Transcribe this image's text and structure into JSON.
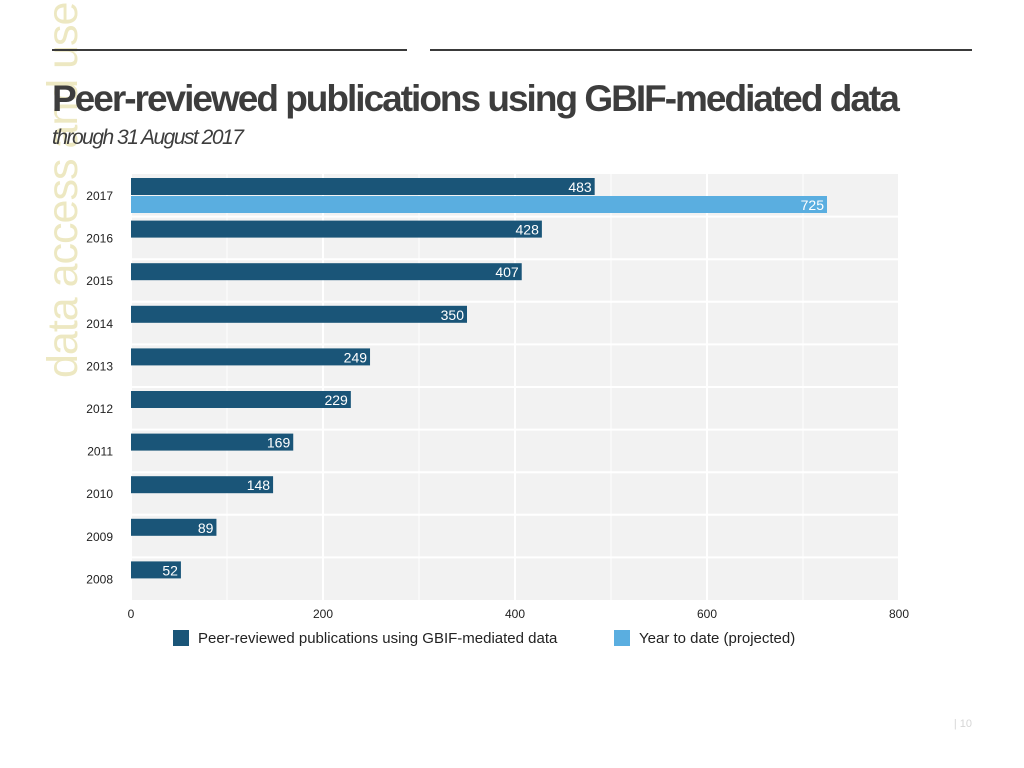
{
  "page": {
    "side_label": "data access and use",
    "title": "Peer-reviewed publications using GBIF-mediated data",
    "subtitle": "through 31 August 2017",
    "page_number": "|  10"
  },
  "colors": {
    "primary": "#1a5578",
    "projected": "#5aaee0",
    "plot_bg": "#f2f2f2",
    "grid": "#ffffff"
  },
  "chart_data": {
    "type": "bar",
    "orientation": "horizontal",
    "title": "Peer-reviewed publications using GBIF-mediated data",
    "categories": [
      "2017",
      "2016",
      "2015",
      "2014",
      "2013",
      "2012",
      "2011",
      "2010",
      "2009",
      "2008"
    ],
    "series": [
      {
        "name": "Peer-reviewed publications using GBIF-mediated data",
        "color": "#1a5578",
        "values": [
          483,
          428,
          407,
          350,
          249,
          229,
          169,
          148,
          89,
          52
        ],
        "labels": [
          "483",
          "428",
          "407",
          "350",
          "249",
          "229",
          "169",
          "148",
          "89",
          "52"
        ]
      },
      {
        "name": "Year to date (projected)",
        "color": "#5aaee0",
        "values": [
          725,
          null,
          null,
          null,
          null,
          null,
          null,
          null,
          null,
          null
        ],
        "labels": [
          "725",
          null,
          null,
          null,
          null,
          null,
          null,
          null,
          null,
          null
        ]
      }
    ],
    "xlim": [
      0,
      800
    ],
    "xticks": [
      0,
      200,
      400,
      600,
      800
    ],
    "xtick_labels": [
      "0",
      "200",
      "400",
      "600",
      "800"
    ],
    "grid": true,
    "legend_position": "bottom"
  }
}
